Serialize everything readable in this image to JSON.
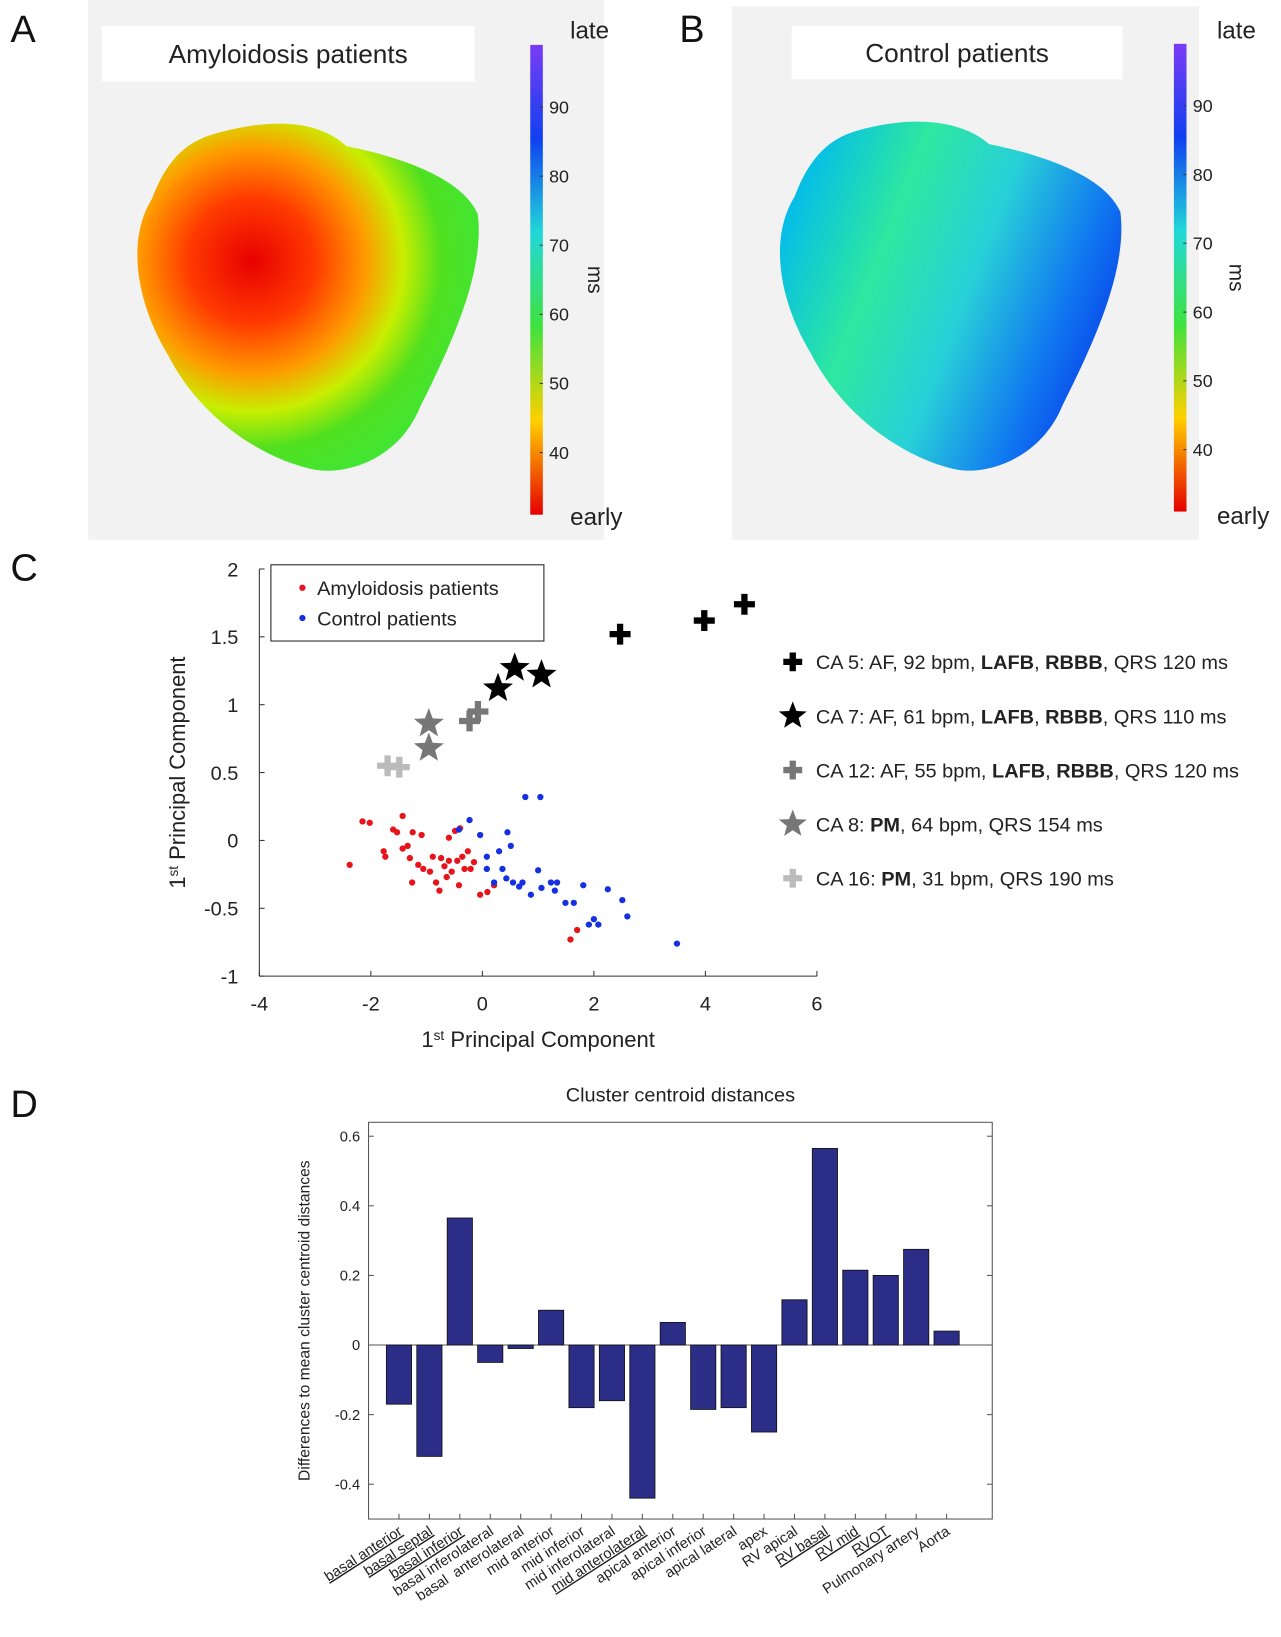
{
  "chart_data": [
    {
      "type": "surface-map",
      "panel": "A",
      "title": "Amyloidosis patients",
      "colorbar_label": "ms",
      "high_label": "late",
      "low_label": "early",
      "clim": [
        31,
        99
      ],
      "cticks": [
        40,
        50,
        60,
        70,
        80,
        90
      ],
      "colormap": [
        "#e50000",
        "#ffd000",
        "#3fe23f",
        "#21d8d8",
        "#1040f0",
        "#7a3cf5"
      ]
    },
    {
      "type": "surface-map",
      "panel": "B",
      "title": "Control patients",
      "colorbar_label": "ms",
      "high_label": "late",
      "low_label": "early",
      "clim": [
        31,
        99
      ],
      "cticks": [
        40,
        50,
        60,
        70,
        80,
        90
      ],
      "colormap": [
        "#e50000",
        "#ffd000",
        "#3fe23f",
        "#21d8d8",
        "#1040f0",
        "#7a3cf5"
      ]
    },
    {
      "type": "scatter",
      "panel": "C",
      "x_label": [
        {
          "text": "1"
        },
        {
          "text": "st",
          "sup": true
        },
        {
          "text": " Principal Component"
        }
      ],
      "y_label": [
        {
          "text": "1"
        },
        {
          "text": "st",
          "sup": true
        },
        {
          "text": " Principal Component"
        }
      ],
      "xlim": [
        -4,
        6
      ],
      "ylim": [
        -1,
        2
      ],
      "xticks": [
        -4,
        -2,
        0,
        2,
        4,
        6
      ],
      "yticks": [
        -1,
        -0.5,
        0,
        0.5,
        1,
        1.5,
        2
      ],
      "series": [
        {
          "name": "Amyloidosis patients",
          "color": "#e8141b",
          "marker": "dot",
          "x": [
            -2.38,
            -2.15,
            -2.02,
            -1.77,
            -1.74,
            -1.6,
            -1.53,
            -1.43,
            -1.34,
            -1.25,
            -1.09,
            -1.3,
            -1.15,
            -1.26,
            -1.06,
            -0.94,
            -0.89,
            -0.83,
            -0.77,
            -0.74,
            -0.68,
            -0.64,
            -0.6,
            -0.55,
            -0.49,
            -0.45,
            -0.42,
            -0.36,
            -0.32,
            -0.26,
            -0.21,
            -0.15,
            -0.4,
            -0.04,
            0.09,
            0.21,
            1.7,
            1.58,
            -0.6,
            -1.43
          ],
          "values": [
            -0.18,
            0.14,
            0.13,
            -0.08,
            -0.12,
            0.08,
            0.06,
            0.18,
            -0.04,
            0.06,
            0.04,
            -0.13,
            -0.18,
            -0.31,
            -0.21,
            -0.23,
            -0.12,
            -0.31,
            -0.37,
            -0.13,
            -0.19,
            -0.27,
            -0.15,
            -0.23,
            0.07,
            -0.15,
            -0.33,
            -0.12,
            -0.21,
            -0.08,
            -0.21,
            -0.16,
            0.09,
            -0.4,
            -0.38,
            -0.33,
            -0.66,
            -0.73,
            0.02,
            -0.06
          ]
        },
        {
          "name": "Control patients",
          "color": "#1530e0",
          "marker": "dot",
          "x": [
            -0.42,
            -0.23,
            -0.04,
            0.3,
            0.45,
            0.51,
            0.77,
            1.04,
            0.08,
            0.21,
            0.36,
            0.43,
            0.55,
            0.66,
            0.87,
            1.0,
            1.06,
            1.23,
            1.3,
            1.34,
            1.49,
            1.64,
            1.81,
            1.91,
            2.0,
            2.08,
            2.25,
            2.51,
            2.6,
            3.49,
            0.08,
            0.72
          ],
          "values": [
            0.08,
            0.15,
            0.04,
            -0.08,
            0.06,
            -0.04,
            0.32,
            0.32,
            -0.21,
            -0.31,
            -0.21,
            -0.28,
            -0.31,
            -0.34,
            -0.4,
            -0.22,
            -0.35,
            -0.31,
            -0.37,
            -0.31,
            -0.46,
            -0.46,
            -0.33,
            -0.62,
            -0.58,
            -0.62,
            -0.36,
            -0.44,
            -0.56,
            -0.76,
            -0.12,
            -0.31
          ]
        },
        {
          "name": [
            {
              "text": "CA 5: AF, 92 bpm, "
            },
            {
              "text": "LAFB",
              "bold": true
            },
            {
              "text": ", "
            },
            {
              "text": "RBBB",
              "bold": true
            },
            {
              "text": ", QRS 120 ms"
            }
          ],
          "color": "#000000",
          "marker": "plus",
          "x": [
            2.47,
            3.98,
            4.7
          ],
          "values": [
            1.52,
            1.62,
            1.74
          ]
        },
        {
          "name": [
            {
              "text": "CA 7: AF, 61 bpm, "
            },
            {
              "text": "LAFB",
              "bold": true
            },
            {
              "text": ", "
            },
            {
              "text": "RBBB",
              "bold": true
            },
            {
              "text": ", QRS 110 ms"
            }
          ],
          "color": "#000000",
          "marker": "star",
          "x": [
            0.28,
            0.58,
            1.06
          ],
          "values": [
            1.12,
            1.27,
            1.22
          ]
        },
        {
          "name": [
            {
              "text": "CA 12: AF, 55 bpm, "
            },
            {
              "text": "LAFB",
              "bold": true
            },
            {
              "text": ", "
            },
            {
              "text": "RBBB",
              "bold": true
            },
            {
              "text": ", QRS 120 ms"
            }
          ],
          "color": "#777777",
          "marker": "plus",
          "x": [
            -0.23,
            -0.08
          ],
          "values": [
            0.88,
            0.95
          ]
        },
        {
          "name": [
            {
              "text": "CA 8: "
            },
            {
              "text": "PM",
              "bold": true
            },
            {
              "text": ", 64 bpm, QRS 154 ms"
            }
          ],
          "color": "#777777",
          "marker": "star",
          "x": [
            -0.96,
            -0.96
          ],
          "values": [
            0.86,
            0.68
          ]
        },
        {
          "name": [
            {
              "text": "CA 16: "
            },
            {
              "text": "PM",
              "bold": true
            },
            {
              "text": ", 31 bpm, QRS 190 ms"
            }
          ],
          "color": "#bbbbbb",
          "marker": "plus",
          "x": [
            -1.7,
            -1.49
          ],
          "values": [
            0.55,
            0.54
          ]
        }
      ]
    },
    {
      "type": "bar",
      "panel": "D",
      "title": "Cluster centroid distances",
      "y_label": "Differences to mean cluster centroid distances",
      "categories": [
        "basal anterior",
        "basal septal",
        "basal inferior",
        "basal inferolateral",
        "basal  anterolateral",
        "mid anterior",
        "mid inferior",
        "mid inferolateral",
        "mid anterolateral",
        "apical anterior",
        "apical inferior",
        "apical lateral",
        "apex",
        "RV apical",
        "RV basal",
        "RV mid",
        "RVOT",
        "Pulmonary artery",
        "Aorta"
      ],
      "underline": [
        true,
        true,
        true,
        false,
        false,
        false,
        false,
        false,
        true,
        false,
        false,
        false,
        false,
        false,
        true,
        true,
        true,
        false,
        false
      ],
      "values": [
        -0.17,
        -0.32,
        0.365,
        -0.05,
        -0.01,
        0.1,
        -0.18,
        -0.16,
        -0.44,
        0.065,
        -0.185,
        -0.18,
        -0.25,
        0.13,
        0.565,
        0.215,
        0.2,
        0.275,
        0.04
      ],
      "color": "#2b2d86",
      "ylim": [
        -0.5,
        0.64
      ],
      "yticks": [
        -0.4,
        -0.2,
        0,
        0.2,
        0.4,
        0.6
      ]
    }
  ]
}
